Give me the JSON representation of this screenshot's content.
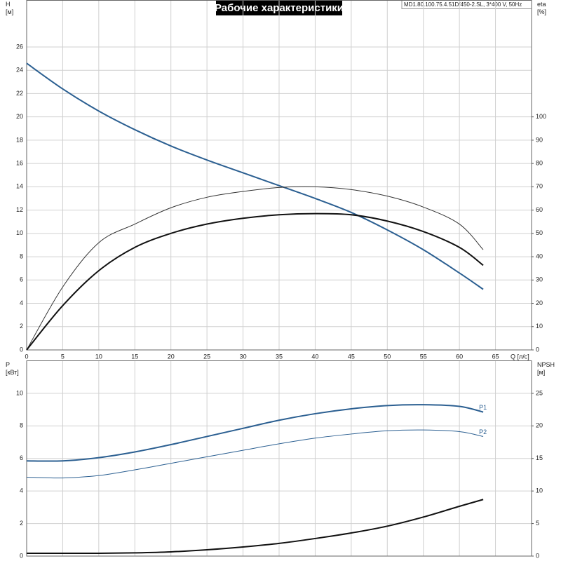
{
  "chart_data": [
    {
      "type": "line",
      "title": "Рабочие характеристики",
      "subtitle": "MD1.80.100.75.4.51D/450-2.SL, 3*400 V, 50Hz",
      "ylabel": [
        "H",
        "[м]"
      ],
      "y2label": [
        "eta",
        "[%]"
      ],
      "xlabel": "Q [л/с]",
      "x": [
        0,
        5,
        10,
        15,
        20,
        25,
        30,
        35,
        40,
        45,
        50,
        55,
        60,
        63.3
      ],
      "xlim": [
        0,
        70
      ],
      "xticks": [
        0,
        5,
        10,
        15,
        20,
        25,
        30,
        35,
        40,
        45,
        50,
        55,
        60,
        65
      ],
      "ylim": [
        0,
        30
      ],
      "yticks": [
        0,
        2,
        4,
        6,
        8,
        10,
        12,
        14,
        16,
        18,
        20,
        22,
        24,
        26
      ],
      "y2lim": [
        0,
        150
      ],
      "y2ticks": [
        0,
        10,
        20,
        30,
        40,
        50,
        60,
        70,
        80,
        90,
        100
      ],
      "grid": true,
      "series": [
        {
          "color": "#2b5f91",
          "linewidth": 2,
          "values": [
            24.6,
            22.4,
            20.5,
            18.9,
            17.5,
            16.3,
            15.2,
            14.1,
            13.0,
            11.8,
            10.3,
            8.6,
            6.6,
            5.2
          ]
        },
        {
          "color": "#333333",
          "linewidth": 1,
          "axis": "y2",
          "values": [
            0,
            27,
            46,
            54,
            61,
            65.5,
            68,
            69.7,
            70,
            68.8,
            66,
            61.3,
            54,
            43
          ]
        },
        {
          "color": "#111111",
          "linewidth": 2,
          "axis": "y2",
          "values": [
            0,
            19,
            34,
            44,
            50,
            54,
            56.5,
            58,
            58.5,
            58,
            55.3,
            50.8,
            44,
            36.3
          ]
        }
      ]
    },
    {
      "type": "line",
      "ylabel": [
        "P",
        "[кВт]"
      ],
      "y2label": [
        "NPSH",
        "[м]"
      ],
      "x": [
        0,
        5,
        10,
        15,
        20,
        25,
        30,
        35,
        40,
        45,
        50,
        55,
        60,
        63.3
      ],
      "xlim": [
        0,
        70
      ],
      "ylim": [
        0,
        12
      ],
      "yticks": [
        0,
        2,
        4,
        6,
        8,
        10
      ],
      "y2lim": [
        0,
        30
      ],
      "y2ticks": [
        0,
        5,
        10,
        15,
        20,
        25
      ],
      "grid": true,
      "series": [
        {
          "name": "P1",
          "color": "#2b5f91",
          "linewidth": 2,
          "values": [
            5.85,
            5.85,
            6.05,
            6.4,
            6.85,
            7.35,
            7.85,
            8.35,
            8.75,
            9.05,
            9.25,
            9.3,
            9.2,
            8.85
          ]
        },
        {
          "name": "P2",
          "color": "#2b5f91",
          "linewidth": 1,
          "values": [
            4.85,
            4.8,
            4.95,
            5.3,
            5.7,
            6.1,
            6.5,
            6.9,
            7.25,
            7.5,
            7.7,
            7.75,
            7.65,
            7.35
          ]
        },
        {
          "color": "#111111",
          "linewidth": 2,
          "axis": "y2",
          "values": [
            0.43,
            0.43,
            0.43,
            0.5,
            0.65,
            0.97,
            1.4,
            1.95,
            2.7,
            3.55,
            4.6,
            6.0,
            7.65,
            8.7
          ]
        }
      ]
    }
  ]
}
